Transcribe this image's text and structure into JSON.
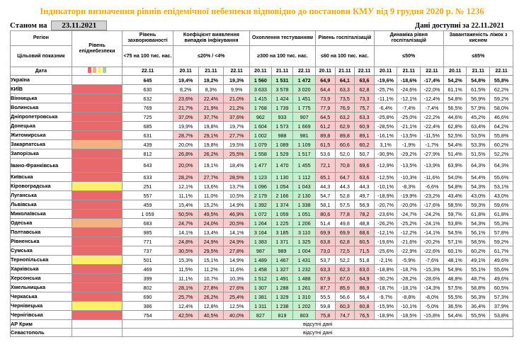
{
  "title": "Індикатори визначення рівнів епідемічної небезпеки відповідно до постанови КМУ від 9 грудня 2020 р. № 1236",
  "as_of_label": "Станом на",
  "as_of_date": "23.11.2021",
  "data_available": "Дані доступні за 22.11.2021",
  "header": {
    "region": "Регіон",
    "target_indicator": "Цільовий показник",
    "date_label": "Дата",
    "level": "Рівень епіднебезпеки",
    "morbidity": "Рівень захворюваності",
    "morbidity_target": "<75 на 100 тис. нас.",
    "morbidity_date": "22.11",
    "detection": "Коефіцієнт виявлення випадків інфікування",
    "detection_target": "≤20% / <4%",
    "testing": "Охоплення тестуванням",
    "testing_target": "≥300 на 100 тис. нас.",
    "hosp": "Рівень госпіталізацій",
    "hosp_target": "≤60 на 100 тис. нас.",
    "dyn": "Динаміка рівня госпіталізацій",
    "dyn_target": "≤50%",
    "beds": "Завантаженість ліжок з киснем",
    "beds_target": "≤65%",
    "dates": [
      "20.11",
      "21.11",
      "22.11"
    ]
  },
  "legend_colors": [
    "#e8696b",
    "#f4b183",
    "#fff06a",
    "#a9d08e"
  ],
  "zone_colors": {
    "red": "#e8696b",
    "orange": "#f4b183",
    "yellow": "#fff06a"
  },
  "no_data_text": "відсутні дані",
  "rows": [
    {
      "region": "Україна",
      "zone": "",
      "m": "645",
      "d": [
        "19,4%",
        "19,2%",
        "19,3%"
      ],
      "t": [
        "1 560",
        "1 531",
        "1 472"
      ],
      "h": [
        "64,9",
        "64,1",
        "63,6"
      ],
      "dy": [
        "-19,6%",
        "-18,6%",
        "-17,4%"
      ],
      "b": [
        "54,2%",
        "54,8%",
        "55,8%"
      ],
      "dc": [
        "",
        "",
        ""
      ],
      "hc": [
        "r",
        "r",
        "r"
      ]
    },
    {
      "region": "КИЇВ",
      "zone": "red",
      "m": "630",
      "d": [
        "8,2%",
        "8,3%",
        "9,9%"
      ],
      "t": [
        "3 633",
        "3 578",
        "3 020"
      ],
      "h": [
        "64,4",
        "63,3",
        "62,8"
      ],
      "dy": [
        "-25,7%",
        "-24,6%",
        "-22,0%"
      ],
      "b": [
        "61,1%",
        "61,5%",
        "62,2%"
      ],
      "dc": [
        "",
        "",
        ""
      ],
      "hc": [
        "r",
        "r",
        "r"
      ]
    },
    {
      "region": "Вінницька",
      "zone": "red",
      "m": "632",
      "d": [
        "23,6%",
        "22,4%",
        "21,0%"
      ],
      "t": [
        "1 415",
        "1 424",
        "1 451"
      ],
      "h": [
        "73,9",
        "73,5",
        "73,3"
      ],
      "dy": [
        "-11,1%",
        "-12,1%",
        "-12,4%"
      ],
      "b": [
        "54,8%",
        "56,9%",
        "59,2%"
      ],
      "dc": [
        "r",
        "r",
        "r"
      ],
      "hc": [
        "r",
        "r",
        "r"
      ]
    },
    {
      "region": "Волинська",
      "zone": "red",
      "m": "769",
      "d": [
        "21,7%",
        "21,9%",
        "21,2%"
      ],
      "t": [
        "1 768",
        "1 739",
        "1 775"
      ],
      "h": [
        "77,9",
        "76,9",
        "75,7"
      ],
      "dy": [
        "-6,4%",
        "-7,4%",
        "-7,4%"
      ],
      "b": [
        "56,5%",
        "57,9%",
        "58,0%"
      ],
      "dc": [
        "r",
        "r",
        "r"
      ],
      "hc": [
        "r",
        "r",
        "r"
      ]
    },
    {
      "region": "Дніпропетровська",
      "zone": "red",
      "m": "725",
      "d": [
        "37,0%",
        "37,7%",
        "37,6%"
      ],
      "t": [
        "962",
        "933",
        "907"
      ],
      "h": [
        "64,5",
        "63,2",
        "63,3"
      ],
      "dy": [
        "-25,8%",
        "-25,0%",
        "-22,2%"
      ],
      "b": [
        "44,6%",
        "45,2%",
        "46,6%"
      ],
      "dc": [
        "r",
        "r",
        "r"
      ],
      "hc": [
        "r",
        "r",
        "r"
      ]
    },
    {
      "region": "Донецька",
      "zone": "red",
      "m": "685",
      "d": [
        "19,9%",
        "19,8%",
        "19,7%"
      ],
      "t": [
        "1 604",
        "1 573",
        "1 669"
      ],
      "h": [
        "61,2",
        "62,9",
        "60,9"
      ],
      "dy": [
        "-28,5%",
        "-21,1%",
        "-22,4%"
      ],
      "b": [
        "62,8%",
        "63,4%",
        "64,2%"
      ],
      "dc": [
        "",
        "",
        ""
      ],
      "hc": [
        "r",
        "r",
        "r"
      ]
    },
    {
      "region": "Житомирська",
      "zone": "red",
      "m": "631",
      "d": [
        "28,7%",
        "29,1%",
        "27,7%"
      ],
      "t": [
        "1 002",
        "988",
        "981"
      ],
      "h": [
        "89,8",
        "89,8",
        "89,1"
      ],
      "dy": [
        "-16,1%",
        "-13,5%",
        "-11,5%"
      ],
      "b": [
        "52,5%",
        "53,5%",
        "55,8%"
      ],
      "dc": [
        "r",
        "r",
        "r"
      ],
      "hc": [
        "r",
        "r",
        "r"
      ]
    },
    {
      "region": "Закарпатська",
      "zone": "orange",
      "m": "439",
      "d": [
        "20,0%",
        "19,8%",
        "19,5%"
      ],
      "t": [
        "1 079",
        "1 089",
        "1 109"
      ],
      "h": [
        "61,5",
        "60,6",
        "60,2"
      ],
      "dy": [
        "3,1%",
        "-1,9%",
        "-1,7%"
      ],
      "b": [
        "54,4%",
        "53,3%",
        "60,2%"
      ],
      "dc": [
        "",
        "",
        ""
      ],
      "hc": [
        "r",
        "r",
        "r"
      ]
    },
    {
      "region": "Запорізька",
      "zone": "red",
      "m": "812",
      "d": [
        "26,8%",
        "26,2%",
        "25,5%"
      ],
      "t": [
        "1 558",
        "1 529",
        "1 517"
      ],
      "h": [
        "53,6",
        "52,0",
        "50,7"
      ],
      "dy": [
        "-30,9%",
        "-29,2%",
        "-27,9%"
      ],
      "b": [
        "51,4%",
        "51,5%",
        "52,2%"
      ],
      "dc": [
        "r",
        "r",
        "r"
      ],
      "hc": [
        "",
        "",
        ""
      ]
    },
    {
      "region": "Івано-Франківська",
      "zone": "red",
      "m": "643",
      "d": [
        "20,0%",
        "19,1%",
        "18,4%"
      ],
      "t": [
        "1 477",
        "1 470",
        "1 455"
      ],
      "h": [
        "72,1",
        "70,8",
        "69,6"
      ],
      "dy": [
        "-12,9%",
        "-13,5%",
        "-13,9%"
      ],
      "b": [
        "63,9%",
        "64,3%",
        "64,3%"
      ],
      "dc": [
        "r",
        "",
        ""
      ],
      "hc": [
        "r",
        "r",
        "r"
      ]
    },
    {
      "region": "Київська",
      "zone": "red",
      "m": "633",
      "d": [
        "28,2%",
        "27,7%",
        "28,5%"
      ],
      "t": [
        "1 123",
        "1 130",
        "1 112"
      ],
      "h": [
        "65,1",
        "64,7",
        "63,6"
      ],
      "dy": [
        "-12,5%",
        "-10,3%",
        "-11,6%"
      ],
      "b": [
        "54,0%",
        "54,4%",
        "55,6%"
      ],
      "dc": [
        "r",
        "r",
        "r"
      ],
      "hc": [
        "r",
        "r",
        "r"
      ]
    },
    {
      "region": "Кіровоградська",
      "zone": "yellow",
      "m": "251",
      "d": [
        "12,1%",
        "13,6%",
        "13,7%"
      ],
      "t": [
        "1 096",
        "1 054",
        "1 043"
      ],
      "h": [
        "44,3",
        "44,3",
        "44,3"
      ],
      "dy": [
        "-10,1%",
        "-8,3%",
        "-6,6%"
      ],
      "b": [
        "54,8%",
        "54,3%",
        "53,1%"
      ],
      "dc": [
        "",
        "",
        ""
      ],
      "hc": [
        "",
        "",
        ""
      ]
    },
    {
      "region": "Луганська",
      "zone": "red",
      "m": "557",
      "d": [
        "11,1%",
        "11,0%",
        "10,5%"
      ],
      "t": [
        "2 179",
        "2 166",
        "2 130"
      ],
      "h": [
        "54,7",
        "52,8",
        "49,7"
      ],
      "dy": [
        "-18,9%",
        "-19,9%",
        "-23,2%"
      ],
      "b": [
        "43,4%",
        "43,0%",
        "43,0%"
      ],
      "dc": [
        "",
        "",
        ""
      ],
      "hc": [
        "",
        "",
        ""
      ]
    },
    {
      "region": "Львівська",
      "zone": "red",
      "m": "459",
      "d": [
        "15,4%",
        "15,2%",
        "14,9%"
      ],
      "t": [
        "1 392",
        "1 374",
        "1 338"
      ],
      "h": [
        "58,1",
        "57,5",
        "56,9"
      ],
      "dy": [
        "-20,7%",
        "-20,0%",
        "-17,6%"
      ],
      "b": [
        "58,5%",
        "59,3%",
        "59,6%"
      ],
      "dc": [
        "",
        "",
        ""
      ],
      "hc": [
        "",
        "",
        ""
      ]
    },
    {
      "region": "Миколаївська",
      "zone": "red",
      "m": "1 059",
      "d": [
        "50,5%",
        "49,5%",
        "46,9%"
      ],
      "t": [
        "1 072",
        "1 059",
        "1 051"
      ],
      "h": [
        "80,6",
        "77,8",
        "78,2"
      ],
      "dy": [
        "-23,6%",
        "-24,7%",
        "-24,2%"
      ],
      "b": [
        "59,7%",
        "61,8%",
        "61,8%"
      ],
      "dc": [
        "r",
        "r",
        "r"
      ],
      "hc": [
        "r",
        "r",
        "r"
      ]
    },
    {
      "region": "Одеська",
      "zone": "orange",
      "m": "683",
      "d": [
        "24,7%",
        "24,0%",
        "20,5%"
      ],
      "t": [
        "1 264",
        "1 225",
        "1 206"
      ],
      "h": [
        "51,4",
        "49,8",
        "48,8"
      ],
      "dy": [
        "-26,2%",
        "-25,2%",
        "-24,1%"
      ],
      "b": [
        "53,8%",
        "54,3%",
        "55,3%"
      ],
      "dc": [
        "r",
        "r",
        "r"
      ],
      "hc": [
        "",
        "",
        ""
      ]
    },
    {
      "region": "Полтавська",
      "zone": "red",
      "m": "985",
      "d": [
        "14,1%",
        "13,4%",
        "14,1%"
      ],
      "t": [
        "3 164",
        "3 185",
        "3 110"
      ],
      "h": [
        "69,9",
        "69,9",
        "68,6"
      ],
      "dy": [
        "-12,1%",
        "-12,2%",
        "-14,1%"
      ],
      "b": [
        "54,5%",
        "56,1%",
        "57,8%"
      ],
      "dc": [
        "",
        "",
        ""
      ],
      "hc": [
        "r",
        "r",
        "r"
      ]
    },
    {
      "region": "Рівненська",
      "zone": "red",
      "m": "771",
      "d": [
        "24,8%",
        "24,9%",
        "24,9%"
      ],
      "t": [
        "1 383",
        "1 371",
        "1 325"
      ],
      "h": [
        "63,8",
        "62,8",
        "60,5"
      ],
      "dy": [
        "-19,6%",
        "-21,6%",
        "-20,2%"
      ],
      "b": [
        "57,1%",
        "58,5%",
        "59,2%"
      ],
      "dc": [
        "r",
        "r",
        "r"
      ],
      "hc": [
        "r",
        "r",
        "r"
      ]
    },
    {
      "region": "Сумська",
      "zone": "red",
      "m": "737",
      "d": [
        "30,5%",
        "29,5%",
        "27,8%"
      ],
      "t": [
        "987",
        "989",
        "1 004"
      ],
      "h": [
        "73,0",
        "72,5",
        "71,5"
      ],
      "dy": [
        "-25,6%",
        "-22,9%",
        "-22,6%"
      ],
      "b": [
        "60,1%",
        "60,2%",
        "61,7%"
      ],
      "dc": [
        "r",
        "r",
        "r"
      ],
      "hc": [
        "r",
        "r",
        "r"
      ]
    },
    {
      "region": "Тернопільська",
      "zone": "yellow",
      "m": "501",
      "d": [
        "15,3%",
        "15,1%",
        "14,9%"
      ],
      "t": [
        "1 489",
        "1 467",
        "1 431"
      ],
      "h": [
        "53,7",
        "52,2",
        "51,8"
      ],
      "dy": [
        "-2,1%",
        "-5,9%",
        "-7,6%"
      ],
      "b": [
        "48,1%",
        "49,1%",
        "49,6%"
      ],
      "dc": [
        "",
        "",
        ""
      ],
      "hc": [
        "",
        "",
        ""
      ]
    },
    {
      "region": "Харківська",
      "zone": "red",
      "m": "469",
      "d": [
        "11,5%",
        "11,2%",
        "11,6%"
      ],
      "t": [
        "1 458",
        "1 327",
        "1 232"
      ],
      "h": [
        "63,3",
        "62,3",
        "63,0"
      ],
      "dy": [
        "-18,8%",
        "-18,7%",
        "-15,3%"
      ],
      "b": [
        "54,9%",
        "55,1%",
        "55,6%"
      ],
      "dc": [
        "",
        "",
        ""
      ],
      "hc": [
        "r",
        "r",
        "r"
      ]
    },
    {
      "region": "Херсонська",
      "zone": "red",
      "m": "399",
      "d": [
        "11,1%",
        "10,7%",
        "10,3%"
      ],
      "t": [
        "1 512",
        "1 491",
        "1 488"
      ],
      "h": [
        "67,9",
        "67,0",
        "64,9"
      ],
      "dy": [
        "-30,2%",
        "-28,2%",
        "-28,6%"
      ],
      "b": [
        "48,8%",
        "48,7%",
        "49,6%"
      ],
      "dc": [
        "",
        "",
        ""
      ],
      "hc": [
        "r",
        "r",
        "r"
      ]
    },
    {
      "region": "Хмельницька",
      "zone": "red",
      "m": "802",
      "d": [
        "28,1%",
        "27,8%",
        "27,6%"
      ],
      "t": [
        "1 307",
        "1 288",
        "1 261"
      ],
      "h": [
        "87,7",
        "85,9",
        "86,9"
      ],
      "dy": [
        "-18,7%",
        "-18,1%",
        "-14,3%"
      ],
      "b": [
        "57,5%",
        "58,8%",
        "60,5%"
      ],
      "dc": [
        "r",
        "r",
        "r"
      ],
      "hc": [
        "r",
        "r",
        "r"
      ]
    },
    {
      "region": "Черкаська",
      "zone": "red",
      "m": "690",
      "d": [
        "25,7%",
        "26,2%",
        "25,4%"
      ],
      "t": [
        "1 381",
        "1 329",
        "1 310"
      ],
      "h": [
        "55,5",
        "56,6",
        "56,4"
      ],
      "dy": [
        "-9,7%",
        "-8,8%",
        "-8,0%"
      ],
      "b": [
        "55,5%",
        "56,3%",
        "57,3%"
      ],
      "dc": [
        "r",
        "r",
        "r"
      ],
      "hc": [
        "",
        "",
        ""
      ]
    },
    {
      "region": "Чернівецька",
      "zone": "yellow",
      "m": "386",
      "d": [
        "12,4%",
        "12,8%",
        "12,5%"
      ],
      "t": [
        "1 311",
        "1 238",
        "1 202"
      ],
      "h": [
        "59,8",
        "60,3",
        "60,8"
      ],
      "dy": [
        "-15,9%",
        "-10,1%",
        "-5,0%"
      ],
      "b": [
        "36,5%",
        "36,4%",
        "37,9%"
      ],
      "dc": [
        "",
        "",
        ""
      ],
      "hc": [
        "",
        "r",
        "r"
      ]
    },
    {
      "region": "Чернігівська",
      "zone": "red",
      "m": "754",
      "d": [
        "42,5%",
        "40,5%",
        "40,0%"
      ],
      "t": [
        "827",
        "819",
        "803"
      ],
      "h": [
        "75,8",
        "74,7",
        "76,5"
      ],
      "dy": [
        "-18,9%",
        "-18,5%",
        "-15,8%"
      ],
      "b": [
        "54,4%",
        "55,5%",
        "53,8%"
      ],
      "dc": [
        "r",
        "r",
        "r"
      ],
      "hc": [
        "r",
        "r",
        "r"
      ]
    }
  ],
  "no_data_rows": [
    "АР Крим",
    "Севастополь"
  ]
}
